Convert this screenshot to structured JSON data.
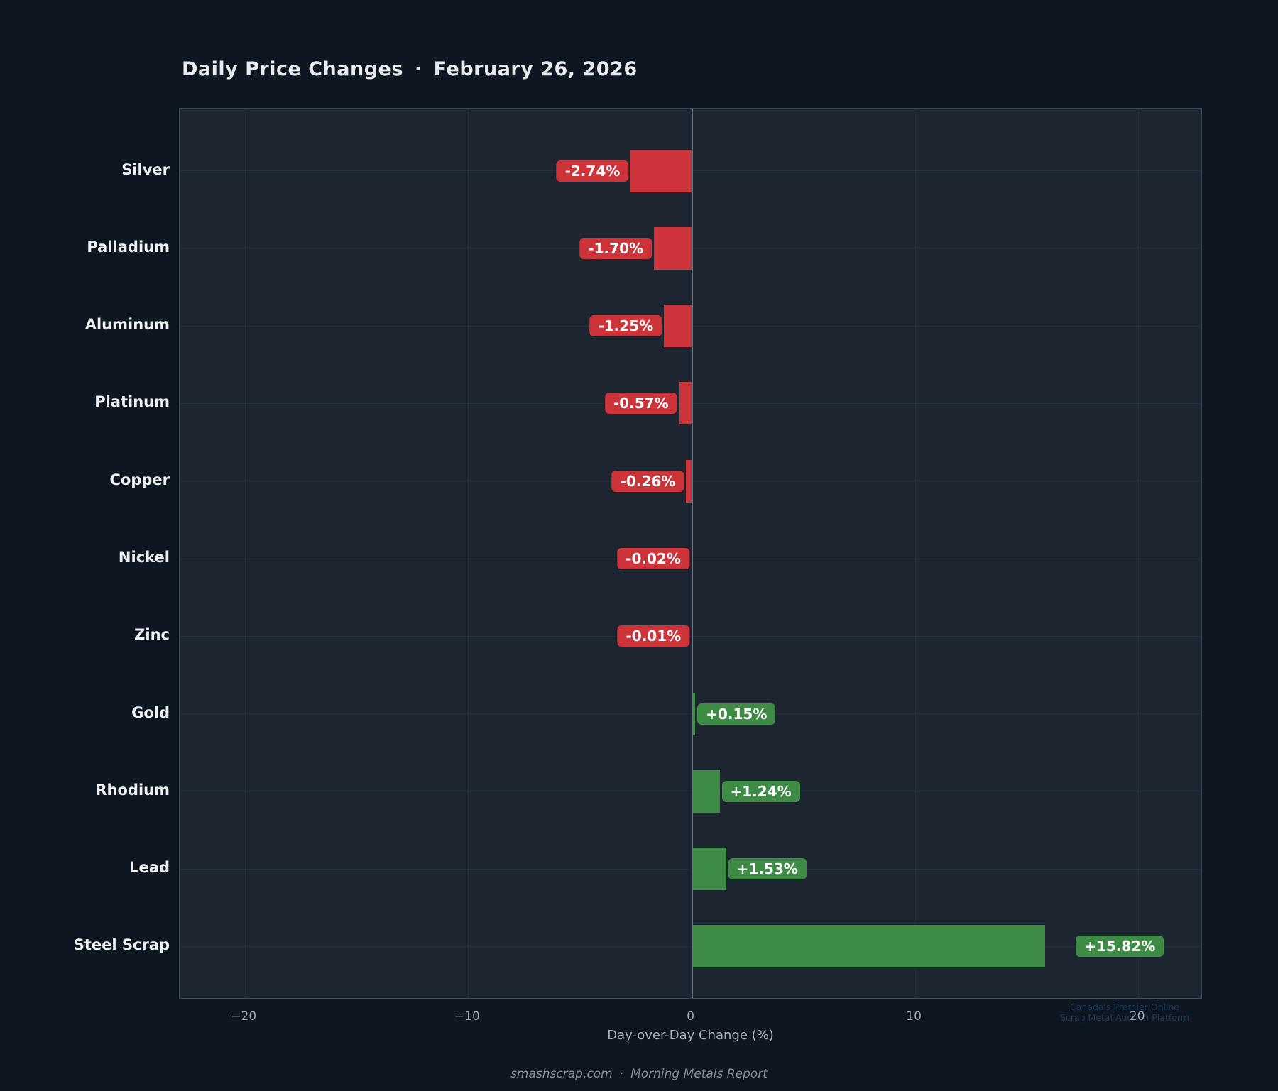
{
  "title": {
    "main": "Daily Price Changes",
    "separator": "·",
    "date": "February 26, 2026"
  },
  "footer": {
    "site": "smashscrap.com",
    "separator": "·",
    "report": "Morning Metals Report"
  },
  "watermark": {
    "line1": "Canada's Premier Online",
    "line2": "Scrap Metal Auction Platform"
  },
  "colors": {
    "background": "#0e1621",
    "plot_background": "#1c2530",
    "plot_border": "#3f4a58",
    "zero_line": "#6e7787",
    "grid_line": "rgba(140,170,185,0.08)",
    "positive": "#3d8b44",
    "negative": "#cd343a",
    "badge_text": "#ffffff",
    "category_label": "#eef0f2",
    "tick_label": "#9aa3ae",
    "axis_label": "#aab2bd",
    "title_text": "#e8eaec",
    "footer_text": "#868d97",
    "watermark_text": "#1d3a5f"
  },
  "chart_data": {
    "type": "bar",
    "orientation": "horizontal",
    "title": "Daily Price Changes · February 26, 2026",
    "categories": [
      "Silver",
      "Palladium",
      "Aluminum",
      "Platinum",
      "Copper",
      "Nickel",
      "Zinc",
      "Gold",
      "Rhodium",
      "Lead",
      "Steel Scrap"
    ],
    "values": [
      -2.74,
      -1.7,
      -1.25,
      -0.57,
      -0.26,
      -0.02,
      -0.01,
      0.15,
      1.24,
      1.53,
      15.82
    ],
    "value_labels": [
      "-2.74%",
      "-1.70%",
      "-1.25%",
      "-0.57%",
      "-0.26%",
      "-0.02%",
      "-0.01%",
      "+0.15%",
      "+1.24%",
      "+1.53%",
      "+15.82%"
    ],
    "xlabel": "Day-over-Day Change (%)",
    "ylabel": "",
    "xlim": [
      -22.9,
      22.9
    ],
    "x_ticks": [
      -20,
      -10,
      0,
      10,
      20
    ],
    "x_tick_labels": [
      "−20",
      "−10",
      "0",
      "10",
      "20"
    ],
    "grid": true,
    "legend": false,
    "zero_baseline": true,
    "label_gaps": {
      "default": 3,
      "Steel Scrap": 43
    }
  }
}
